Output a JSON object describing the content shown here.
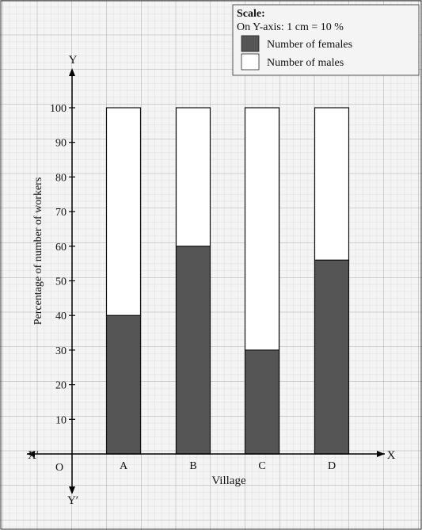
{
  "chart_data": {
    "type": "bar",
    "stacked": true,
    "categories": [
      "A",
      "B",
      "C",
      "D"
    ],
    "series": [
      {
        "name": "Number of females",
        "values": [
          40,
          60,
          30,
          56
        ],
        "color": "#555555"
      },
      {
        "name": "Number of males",
        "values": [
          60,
          40,
          70,
          44
        ],
        "color": "#ffffff"
      }
    ],
    "xlabel": "Village",
    "ylabel": "Percentage of number of workers",
    "ylim": [
      0,
      100
    ],
    "yticks": [
      10,
      20,
      30,
      40,
      50,
      60,
      70,
      80,
      90,
      100
    ],
    "grid": true,
    "legend_placement": "top-right",
    "axis_labels": {
      "x": "X",
      "x_neg": "X′",
      "y": "Y",
      "y_neg": "Y′",
      "origin": "O"
    },
    "scale": {
      "title": "Scale:",
      "text": "On Y-axis: 1 cm = 10 %"
    }
  }
}
